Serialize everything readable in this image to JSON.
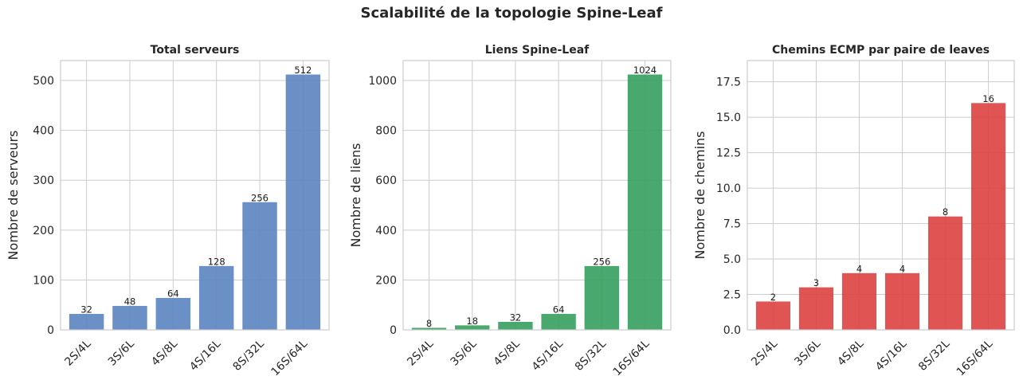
{
  "suptitle": "Scalabilité de la topologie Spine-Leaf",
  "chart_data": [
    {
      "type": "bar",
      "title": "Total serveurs",
      "xlabel": "",
      "ylabel": "Nombre de serveurs",
      "categories": [
        "2S/4L",
        "3S/6L",
        "4S/8L",
        "4S/16L",
        "8S/32L",
        "16S/64L"
      ],
      "values": [
        32,
        48,
        64,
        128,
        256,
        512
      ],
      "ylim": [
        0,
        540
      ],
      "yticks": [
        0,
        100,
        200,
        300,
        400,
        500
      ],
      "ytick_labels": [
        "0",
        "100",
        "200",
        "300",
        "400",
        "500"
      ],
      "color": "#5b84c0",
      "grid": true
    },
    {
      "type": "bar",
      "title": "Liens Spine-Leaf",
      "xlabel": "",
      "ylabel": "Nombre de liens",
      "categories": [
        "2S/4L",
        "3S/6L",
        "4S/8L",
        "4S/16L",
        "8S/32L",
        "16S/64L"
      ],
      "values": [
        8,
        18,
        32,
        64,
        256,
        1024
      ],
      "ylim": [
        0,
        1080
      ],
      "yticks": [
        0,
        200,
        400,
        600,
        800,
        1000
      ],
      "ytick_labels": [
        "0",
        "200",
        "400",
        "600",
        "800",
        "1000"
      ],
      "color": "#359f5e",
      "grid": true
    },
    {
      "type": "bar",
      "title": "Chemins ECMP par paire de leaves",
      "xlabel": "",
      "ylabel": "Nombre de chemins",
      "categories": [
        "2S/4L",
        "3S/6L",
        "4S/8L",
        "4S/16L",
        "8S/32L",
        "16S/64L"
      ],
      "values": [
        2,
        3,
        4,
        4,
        8,
        16
      ],
      "ylim": [
        0,
        19
      ],
      "yticks": [
        0,
        2.5,
        5,
        7.5,
        10,
        12.5,
        15,
        17.5
      ],
      "ytick_labels": [
        "0.0",
        "2.5",
        "5.0",
        "7.5",
        "10.0",
        "12.5",
        "15.0",
        "17.5"
      ],
      "color": "#dd4240",
      "grid": true
    }
  ]
}
